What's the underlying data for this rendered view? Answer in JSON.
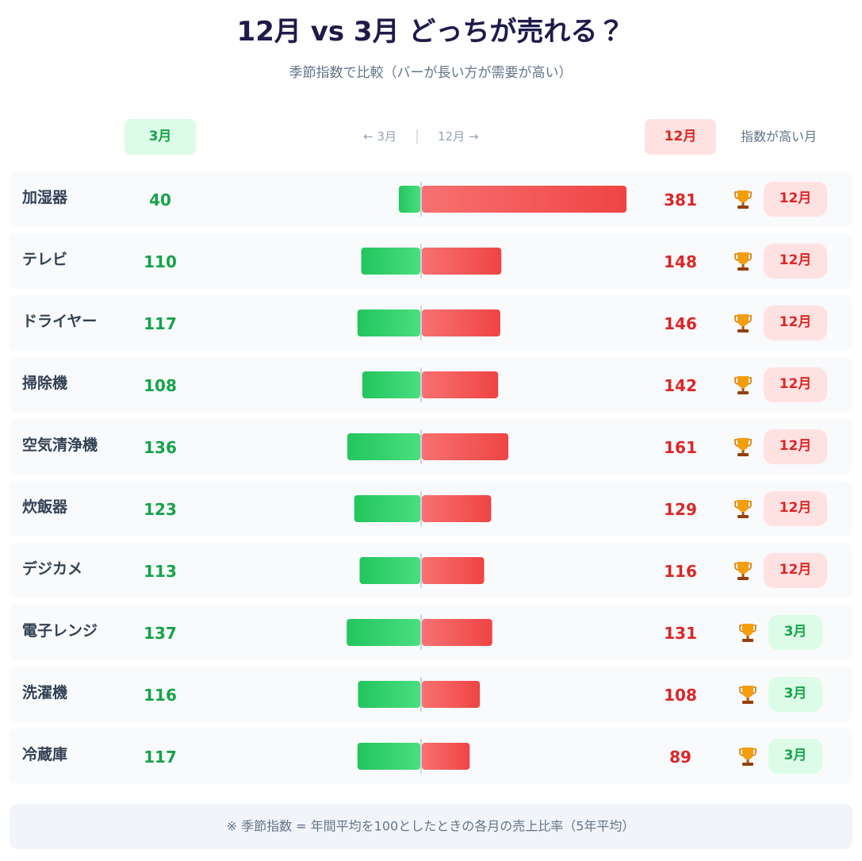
{
  "chart_data": {
    "type": "butterfly",
    "title": "12月 vs 3月 どっちが売れる？",
    "subtitle": "季節指数で比較（バーが長い方が需要が高い）",
    "direction_labels": [
      "← 3月",
      "12月 →"
    ],
    "winner_header": "指数が高い月",
    "categories": [
      "加湿器",
      "テレビ",
      "ドライヤー",
      "掃除機",
      "空気清浄機",
      "炊飯器",
      "デジカメ",
      "電子レンジ",
      "洗濯機",
      "冷蔵庫"
    ],
    "series": [
      {
        "name": "3月",
        "color": "#16a34a",
        "values": [
          40,
          110,
          117,
          108,
          136,
          123,
          113,
          137,
          116,
          117
        ]
      },
      {
        "name": "12月",
        "color": "#dc2626",
        "values": [
          381,
          148,
          146,
          142,
          161,
          129,
          116,
          131,
          108,
          89
        ]
      }
    ],
    "winners": [
      "12月",
      "12月",
      "12月",
      "12月",
      "12月",
      "12月",
      "12月",
      "3月",
      "3月",
      "3月"
    ],
    "note": "※ 季節指数 = 年間平均を100としたときの各月の売上比率（5年平均）"
  }
}
